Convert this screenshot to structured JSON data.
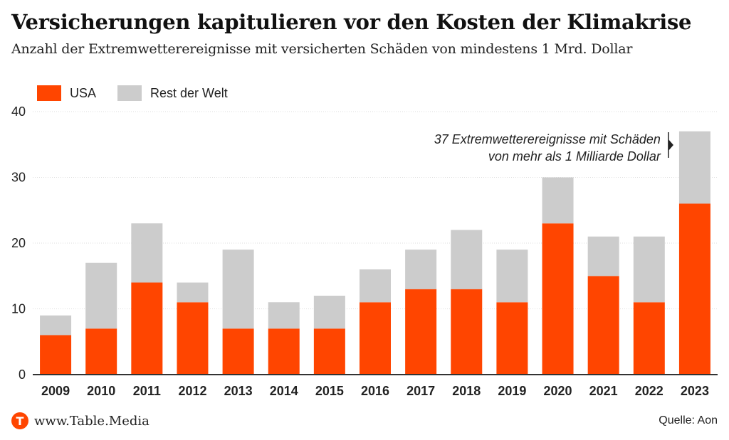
{
  "title": "Versicherungen kapitulieren vor den Kosten der Klimakrise",
  "subtitle": "Anzahl der Extremwetterereignisse mit versicherten Schäden von mindestens 1 Mrd. Dollar",
  "footer": {
    "site": "www.Table.Media",
    "source": "Quelle: Aon",
    "logo_letter": "T"
  },
  "colors": {
    "usa": "#ff4500",
    "rest": "#cccccc",
    "grid": "#dddddd",
    "axis": "#333333"
  },
  "chart_data": {
    "type": "bar",
    "stacked": true,
    "categories": [
      "2009",
      "2010",
      "2011",
      "2012",
      "2013",
      "2014",
      "2015",
      "2016",
      "2017",
      "2018",
      "2019",
      "2020",
      "2021",
      "2022",
      "2023"
    ],
    "series": [
      {
        "name": "USA",
        "color": "#ff4500",
        "values": [
          6,
          7,
          14,
          11,
          7,
          7,
          7,
          11,
          13,
          13,
          11,
          23,
          15,
          11,
          26
        ]
      },
      {
        "name": "Rest der Welt",
        "color": "#cccccc",
        "values": [
          3,
          10,
          9,
          3,
          12,
          4,
          5,
          5,
          6,
          9,
          8,
          7,
          6,
          10,
          11
        ]
      }
    ],
    "ylim": [
      0,
      40
    ],
    "yticks": [
      0,
      10,
      20,
      30,
      40
    ],
    "grid": true,
    "legend": "top-left",
    "annotation": {
      "category": "2023",
      "lines": [
        "37 Extremwetterereignisse mit Schäden",
        "von mehr als 1 Milliarde Dollar"
      ]
    }
  }
}
